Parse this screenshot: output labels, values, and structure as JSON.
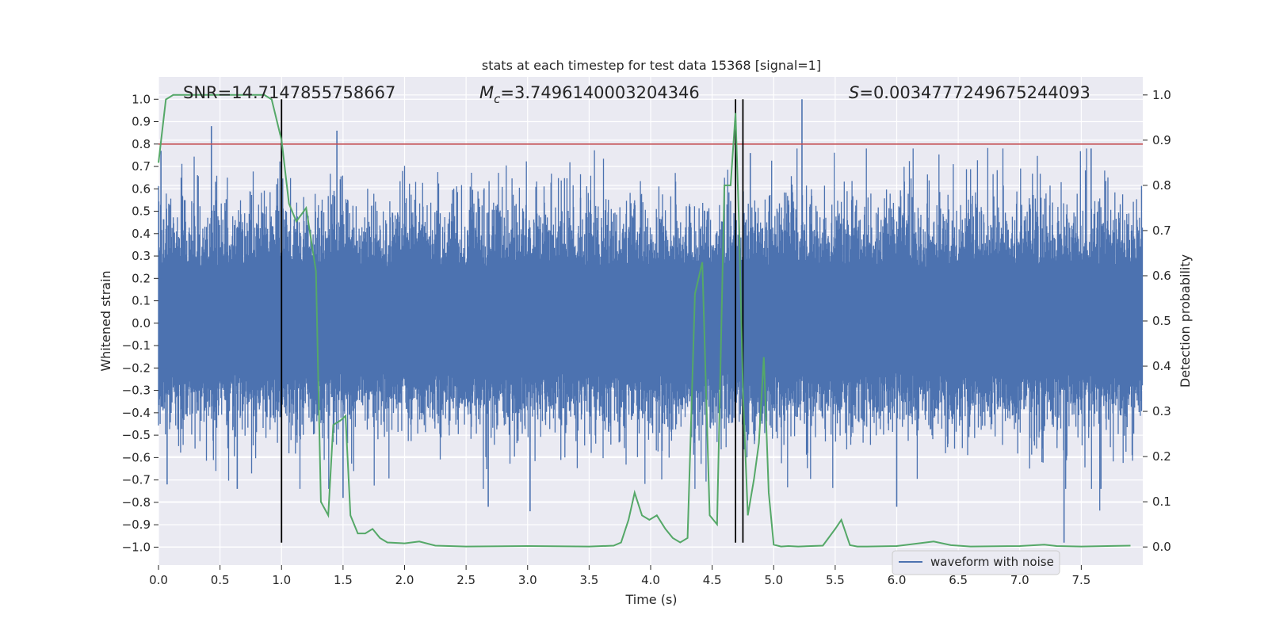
{
  "chart_data": {
    "type": "line",
    "title": "stats at each timestep for test data 15368 [signal=1]",
    "xlabel": "Time (s)",
    "ylabel_left": "Whitened strain",
    "ylabel_right": "Detection probability",
    "xlim": [
      0.0,
      8.0
    ],
    "ylim_left": [
      -1.08,
      1.1
    ],
    "ylim_right": [
      -0.04,
      1.04
    ],
    "x_ticks": [
      0.0,
      0.5,
      1.0,
      1.5,
      2.0,
      2.5,
      3.0,
      3.5,
      4.0,
      4.5,
      5.0,
      5.5,
      6.0,
      6.5,
      7.0,
      7.5
    ],
    "x_tick_labels": [
      "0.0",
      "0.5",
      "1.0",
      "1.5",
      "2.0",
      "2.5",
      "3.0",
      "3.5",
      "4.0",
      "4.5",
      "5.0",
      "5.5",
      "6.0",
      "6.5",
      "7.0",
      "7.5"
    ],
    "y_left_ticks": [
      -1.0,
      -0.9,
      -0.8,
      -0.7,
      -0.6,
      -0.5,
      -0.4,
      -0.3,
      -0.2,
      -0.1,
      0.0,
      0.1,
      0.2,
      0.3,
      0.4,
      0.5,
      0.6,
      0.7,
      0.8,
      0.9,
      1.0
    ],
    "y_left_tick_labels": [
      "−1.0",
      "−0.9",
      "−0.8",
      "−0.7",
      "−0.6",
      "−0.5",
      "−0.4",
      "−0.3",
      "−0.2",
      "−0.1",
      "0.0",
      "0.1",
      "0.2",
      "0.3",
      "0.4",
      "0.5",
      "0.6",
      "0.7",
      "0.8",
      "0.9",
      "1.0"
    ],
    "y_right_ticks": [
      0.0,
      0.1,
      0.2,
      0.3,
      0.4,
      0.5,
      0.6,
      0.7,
      0.8,
      0.9,
      1.0
    ],
    "y_right_tick_labels": [
      "0.0",
      "0.1",
      "0.2",
      "0.3",
      "0.4",
      "0.5",
      "0.6",
      "0.7",
      "0.8",
      "0.9",
      "1.0"
    ],
    "grid": true,
    "legend_position": "lower-right",
    "legend_entries": [
      "waveform with noise"
    ],
    "annotations": {
      "snr": "SNR=14.7147855758667",
      "mc_symbol": "M",
      "mc_sub": "c",
      "mc_value": "=3.7496140003204346",
      "s_symbol": "S",
      "s_value": "=0.0034777249675244093"
    },
    "threshold_line": {
      "y_left": 0.8,
      "color": "#c44e52"
    },
    "vertical_lines": [
      {
        "x": 1.0,
        "y_range": [
          -0.98,
          1.0
        ]
      },
      {
        "x": 4.69,
        "y_range": [
          -0.98,
          1.0
        ]
      },
      {
        "x": 4.75,
        "y_range": [
          -0.98,
          1.0
        ]
      }
    ],
    "series": [
      {
        "name": "waveform with noise",
        "axis": "left",
        "color": "#4c72b0",
        "kind": "noisy-strain",
        "typical_band": [
          -0.4,
          0.45
        ],
        "spikes": [
          {
            "x": 0.02,
            "y": 0.77
          },
          {
            "x": 0.43,
            "y": 0.88
          },
          {
            "x": 1.45,
            "y": 0.86
          },
          {
            "x": 5.23,
            "y": 1.0
          },
          {
            "x": 7.58,
            "y": 0.78
          },
          {
            "x": 7.36,
            "y": -0.98
          },
          {
            "x": 0.07,
            "y": -0.72
          },
          {
            "x": 0.64,
            "y": -0.74
          },
          {
            "x": 2.68,
            "y": -0.82
          },
          {
            "x": 3.02,
            "y": -0.84
          },
          {
            "x": 6.0,
            "y": -0.82
          },
          {
            "x": 7.66,
            "y": -0.74
          },
          {
            "x": 1.5,
            "y": -0.78
          },
          {
            "x": 3.43,
            "y": 0.56
          },
          {
            "x": 4.81,
            "y": 0.76
          }
        ]
      },
      {
        "name": "",
        "axis": "right",
        "color": "#55a868",
        "x": [
          0.0,
          0.06,
          0.12,
          0.2,
          0.4,
          0.6,
          0.8,
          0.86,
          0.92,
          1.0,
          1.06,
          1.12,
          1.2,
          1.28,
          1.32,
          1.38,
          1.42,
          1.48,
          1.52,
          1.56,
          1.62,
          1.68,
          1.74,
          1.8,
          1.86,
          2.0,
          2.12,
          2.25,
          2.5,
          3.0,
          3.5,
          3.7,
          3.76,
          3.82,
          3.87,
          3.93,
          3.99,
          4.05,
          4.12,
          4.18,
          4.24,
          4.3,
          4.36,
          4.42,
          4.48,
          4.54,
          4.6,
          4.65,
          4.69,
          4.72,
          4.75,
          4.79,
          4.84,
          4.88,
          4.92,
          4.96,
          5.0,
          5.06,
          5.12,
          5.2,
          5.4,
          5.5,
          5.55,
          5.62,
          5.68,
          5.76,
          6.0,
          6.3,
          6.44,
          6.6,
          7.0,
          7.2,
          7.3,
          7.5,
          7.9
        ],
        "y": [
          0.85,
          0.99,
          1.0,
          1.0,
          1.0,
          1.0,
          1.0,
          1.0,
          0.99,
          0.9,
          0.76,
          0.72,
          0.75,
          0.61,
          0.1,
          0.07,
          0.27,
          0.28,
          0.29,
          0.07,
          0.03,
          0.03,
          0.04,
          0.02,
          0.01,
          0.008,
          0.012,
          0.003,
          0.001,
          0.002,
          0.001,
          0.003,
          0.01,
          0.06,
          0.12,
          0.07,
          0.06,
          0.07,
          0.04,
          0.02,
          0.01,
          0.02,
          0.56,
          0.63,
          0.07,
          0.05,
          0.8,
          0.8,
          0.96,
          0.7,
          0.35,
          0.07,
          0.15,
          0.23,
          0.42,
          0.12,
          0.005,
          0.001,
          0.002,
          0.001,
          0.003,
          0.04,
          0.06,
          0.004,
          0.001,
          0.001,
          0.002,
          0.012,
          0.004,
          0.001,
          0.002,
          0.005,
          0.002,
          0.001,
          0.003
        ]
      }
    ]
  }
}
